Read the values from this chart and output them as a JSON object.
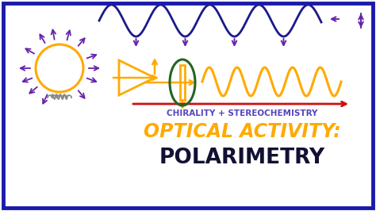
{
  "bg_color": "#ffffff",
  "border_color": "#1a1aaa",
  "title1": "CHIRALITY + STEREOCHEMISTRY",
  "title1_color": "#5544bb",
  "title2": "OPTICAL ACTIVITY:",
  "title2_color": "#ffaa00",
  "title3": "POLARIMETRY",
  "title3_color": "#111133",
  "wave_color_top": "#1a1a8c",
  "wave_color_mid": "#ffaa00",
  "purple": "#6622aa",
  "orange": "#ffaa00",
  "green": "#226622",
  "red": "#cc1111",
  "gray": "#888888"
}
